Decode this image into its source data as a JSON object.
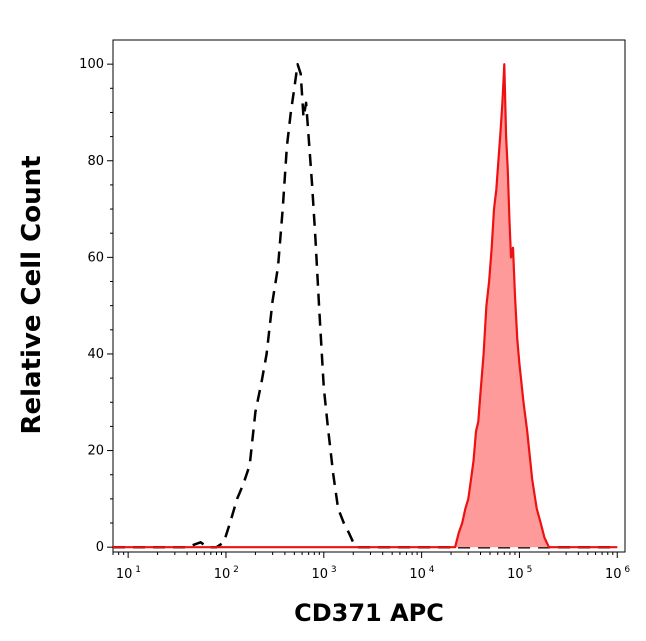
{
  "chart_data": {
    "type": "area",
    "title": "",
    "xlabel": "CD371 APC",
    "ylabel": "Relative Cell Count",
    "xscale": "log",
    "xlim": [
      7,
      1200000
    ],
    "ylim": [
      -1,
      105
    ],
    "grid": false,
    "legend": "none",
    "x_ticks": [
      {
        "base": "10",
        "exp": "1",
        "value": 10
      },
      {
        "base": "10",
        "exp": "2",
        "value": 100
      },
      {
        "base": "10",
        "exp": "3",
        "value": 1000
      },
      {
        "base": "10",
        "exp": "4",
        "value": 10000
      },
      {
        "base": "10",
        "exp": "5",
        "value": 100000
      },
      {
        "base": "10",
        "exp": "6",
        "value": 1000000
      }
    ],
    "y_ticks": [
      "0",
      "20",
      "40",
      "60",
      "80",
      "100"
    ],
    "series": [
      {
        "style": "dashed-outline",
        "color": "#000000",
        "fill": "none",
        "x": [
          7,
          40,
          55,
          65,
          80,
          95,
          110,
          130,
          150,
          175,
          200,
          230,
          260,
          300,
          340,
          380,
          420,
          460,
          500,
          540,
          580,
          620,
          660,
          700,
          760,
          820,
          900,
          1000,
          1100,
          1250,
          1400,
          1600,
          1800,
          2000,
          2200,
          3000,
          1000000
        ],
        "y": [
          0,
          0,
          1,
          0,
          0,
          1,
          5,
          10,
          13,
          17,
          28,
          34,
          40,
          51,
          58,
          70,
          83,
          90,
          95,
          100,
          98,
          89,
          92,
          85,
          75,
          64,
          49,
          33,
          25,
          15,
          8,
          5,
          3,
          1,
          0,
          0,
          0
        ]
      },
      {
        "style": "solid-filled",
        "color": "#ee1111",
        "fill": "#ff9a9a",
        "x": [
          7,
          22000,
          24000,
          26000,
          28000,
          30000,
          32000,
          34000,
          36000,
          38000,
          40000,
          43000,
          46000,
          49000,
          52000,
          55000,
          58000,
          61000,
          64000,
          67000,
          70000,
          73000,
          76000,
          79000,
          82000,
          86000,
          90000,
          95000,
          100000,
          110000,
          120000,
          135000,
          150000,
          165000,
          180000,
          200000,
          1000000
        ],
        "y": [
          0,
          0,
          3,
          5,
          8,
          10,
          14,
          18,
          24,
          26,
          32,
          40,
          50,
          55,
          62,
          70,
          74,
          80,
          86,
          92,
          100,
          85,
          78,
          68,
          60,
          62,
          52,
          43,
          38,
          30,
          24,
          14,
          8,
          5,
          2,
          0,
          0
        ]
      }
    ]
  }
}
